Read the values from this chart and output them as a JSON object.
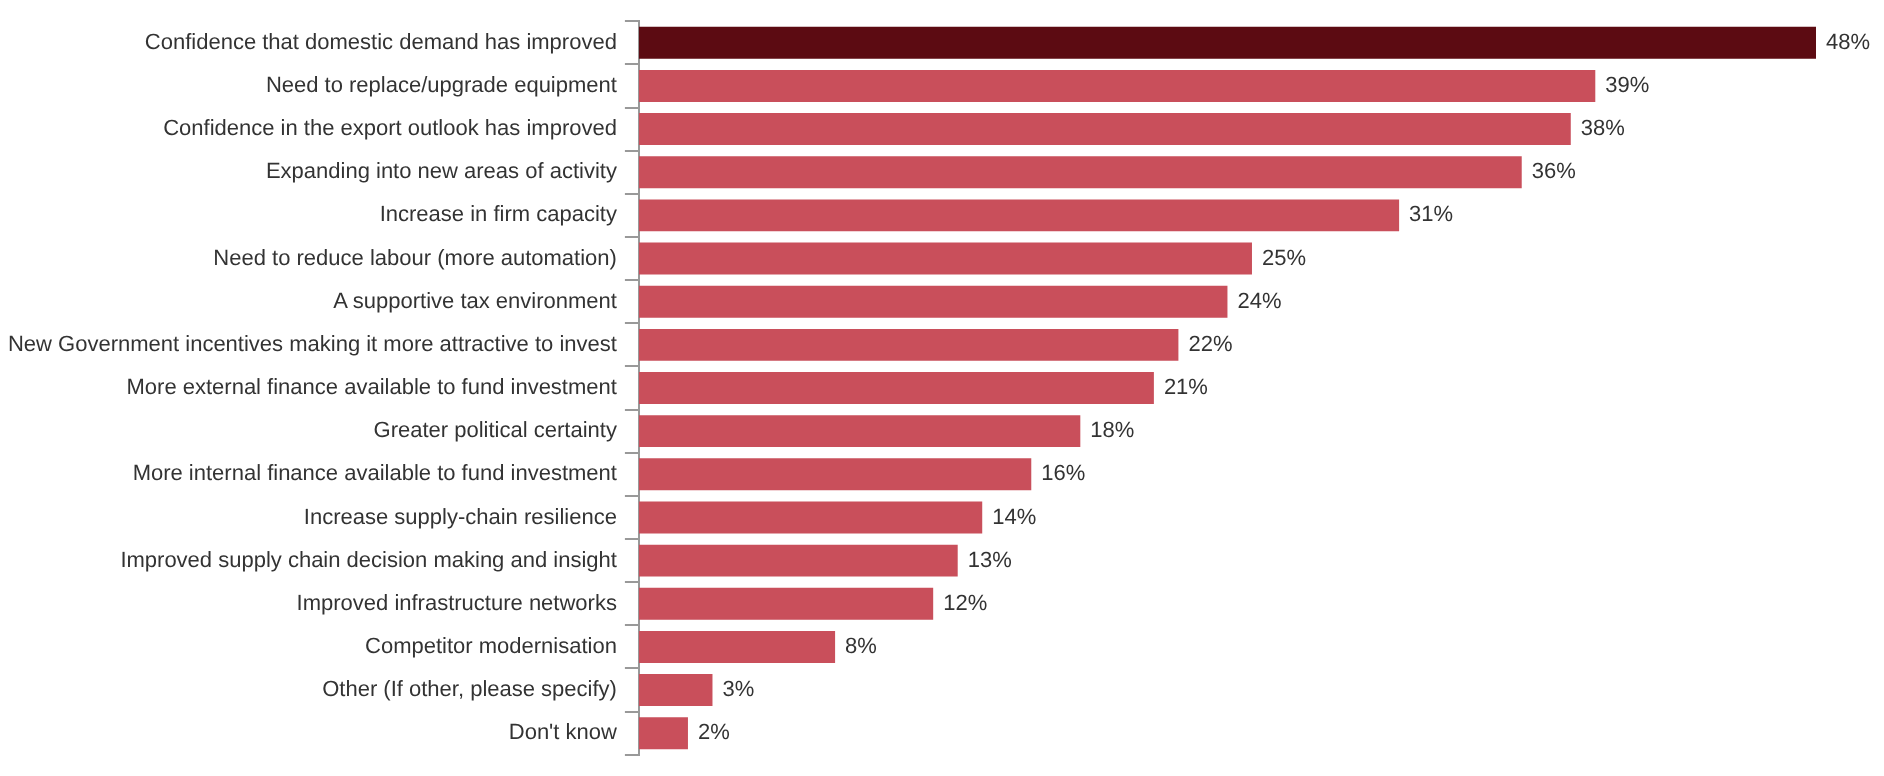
{
  "chart_data": {
    "type": "bar",
    "orientation": "horizontal",
    "categories": [
      "Confidence that domestic demand has improved",
      "Need to replace/upgrade equipment",
      "Confidence in the export outlook has improved",
      "Expanding into new areas of activity",
      "Increase in firm capacity",
      "Need to reduce labour (more automation)",
      "A supportive tax environment",
      "New Government incentives making it more attractive to invest",
      "More external finance available to fund investment",
      "Greater political certainty",
      "More internal finance available to fund investment",
      "Increase supply-chain resilience",
      "Improved supply chain decision making and insight",
      "Improved infrastructure networks",
      "Competitor modernisation",
      "Other (If other, please specify)",
      "Don't know"
    ],
    "values": [
      48,
      39,
      38,
      36,
      31,
      25,
      24,
      22,
      21,
      18,
      16,
      14,
      13,
      12,
      8,
      3,
      2
    ],
    "colors": [
      "#5c0b12",
      "#c94f5b",
      "#c94f5b",
      "#c94f5b",
      "#c94f5b",
      "#c94f5b",
      "#c94f5b",
      "#c94f5b",
      "#c94f5b",
      "#c94f5b",
      "#c94f5b",
      "#c94f5b",
      "#c94f5b",
      "#c94f5b",
      "#c94f5b",
      "#c94f5b",
      "#c94f5b"
    ],
    "value_labels": [
      "48%",
      "39%",
      "38%",
      "36%",
      "31%",
      "25%",
      "24%",
      "22%",
      "21%",
      "18%",
      "16%",
      "14%",
      "13%",
      "12%",
      "8%",
      "3%",
      "2%"
    ]
  }
}
